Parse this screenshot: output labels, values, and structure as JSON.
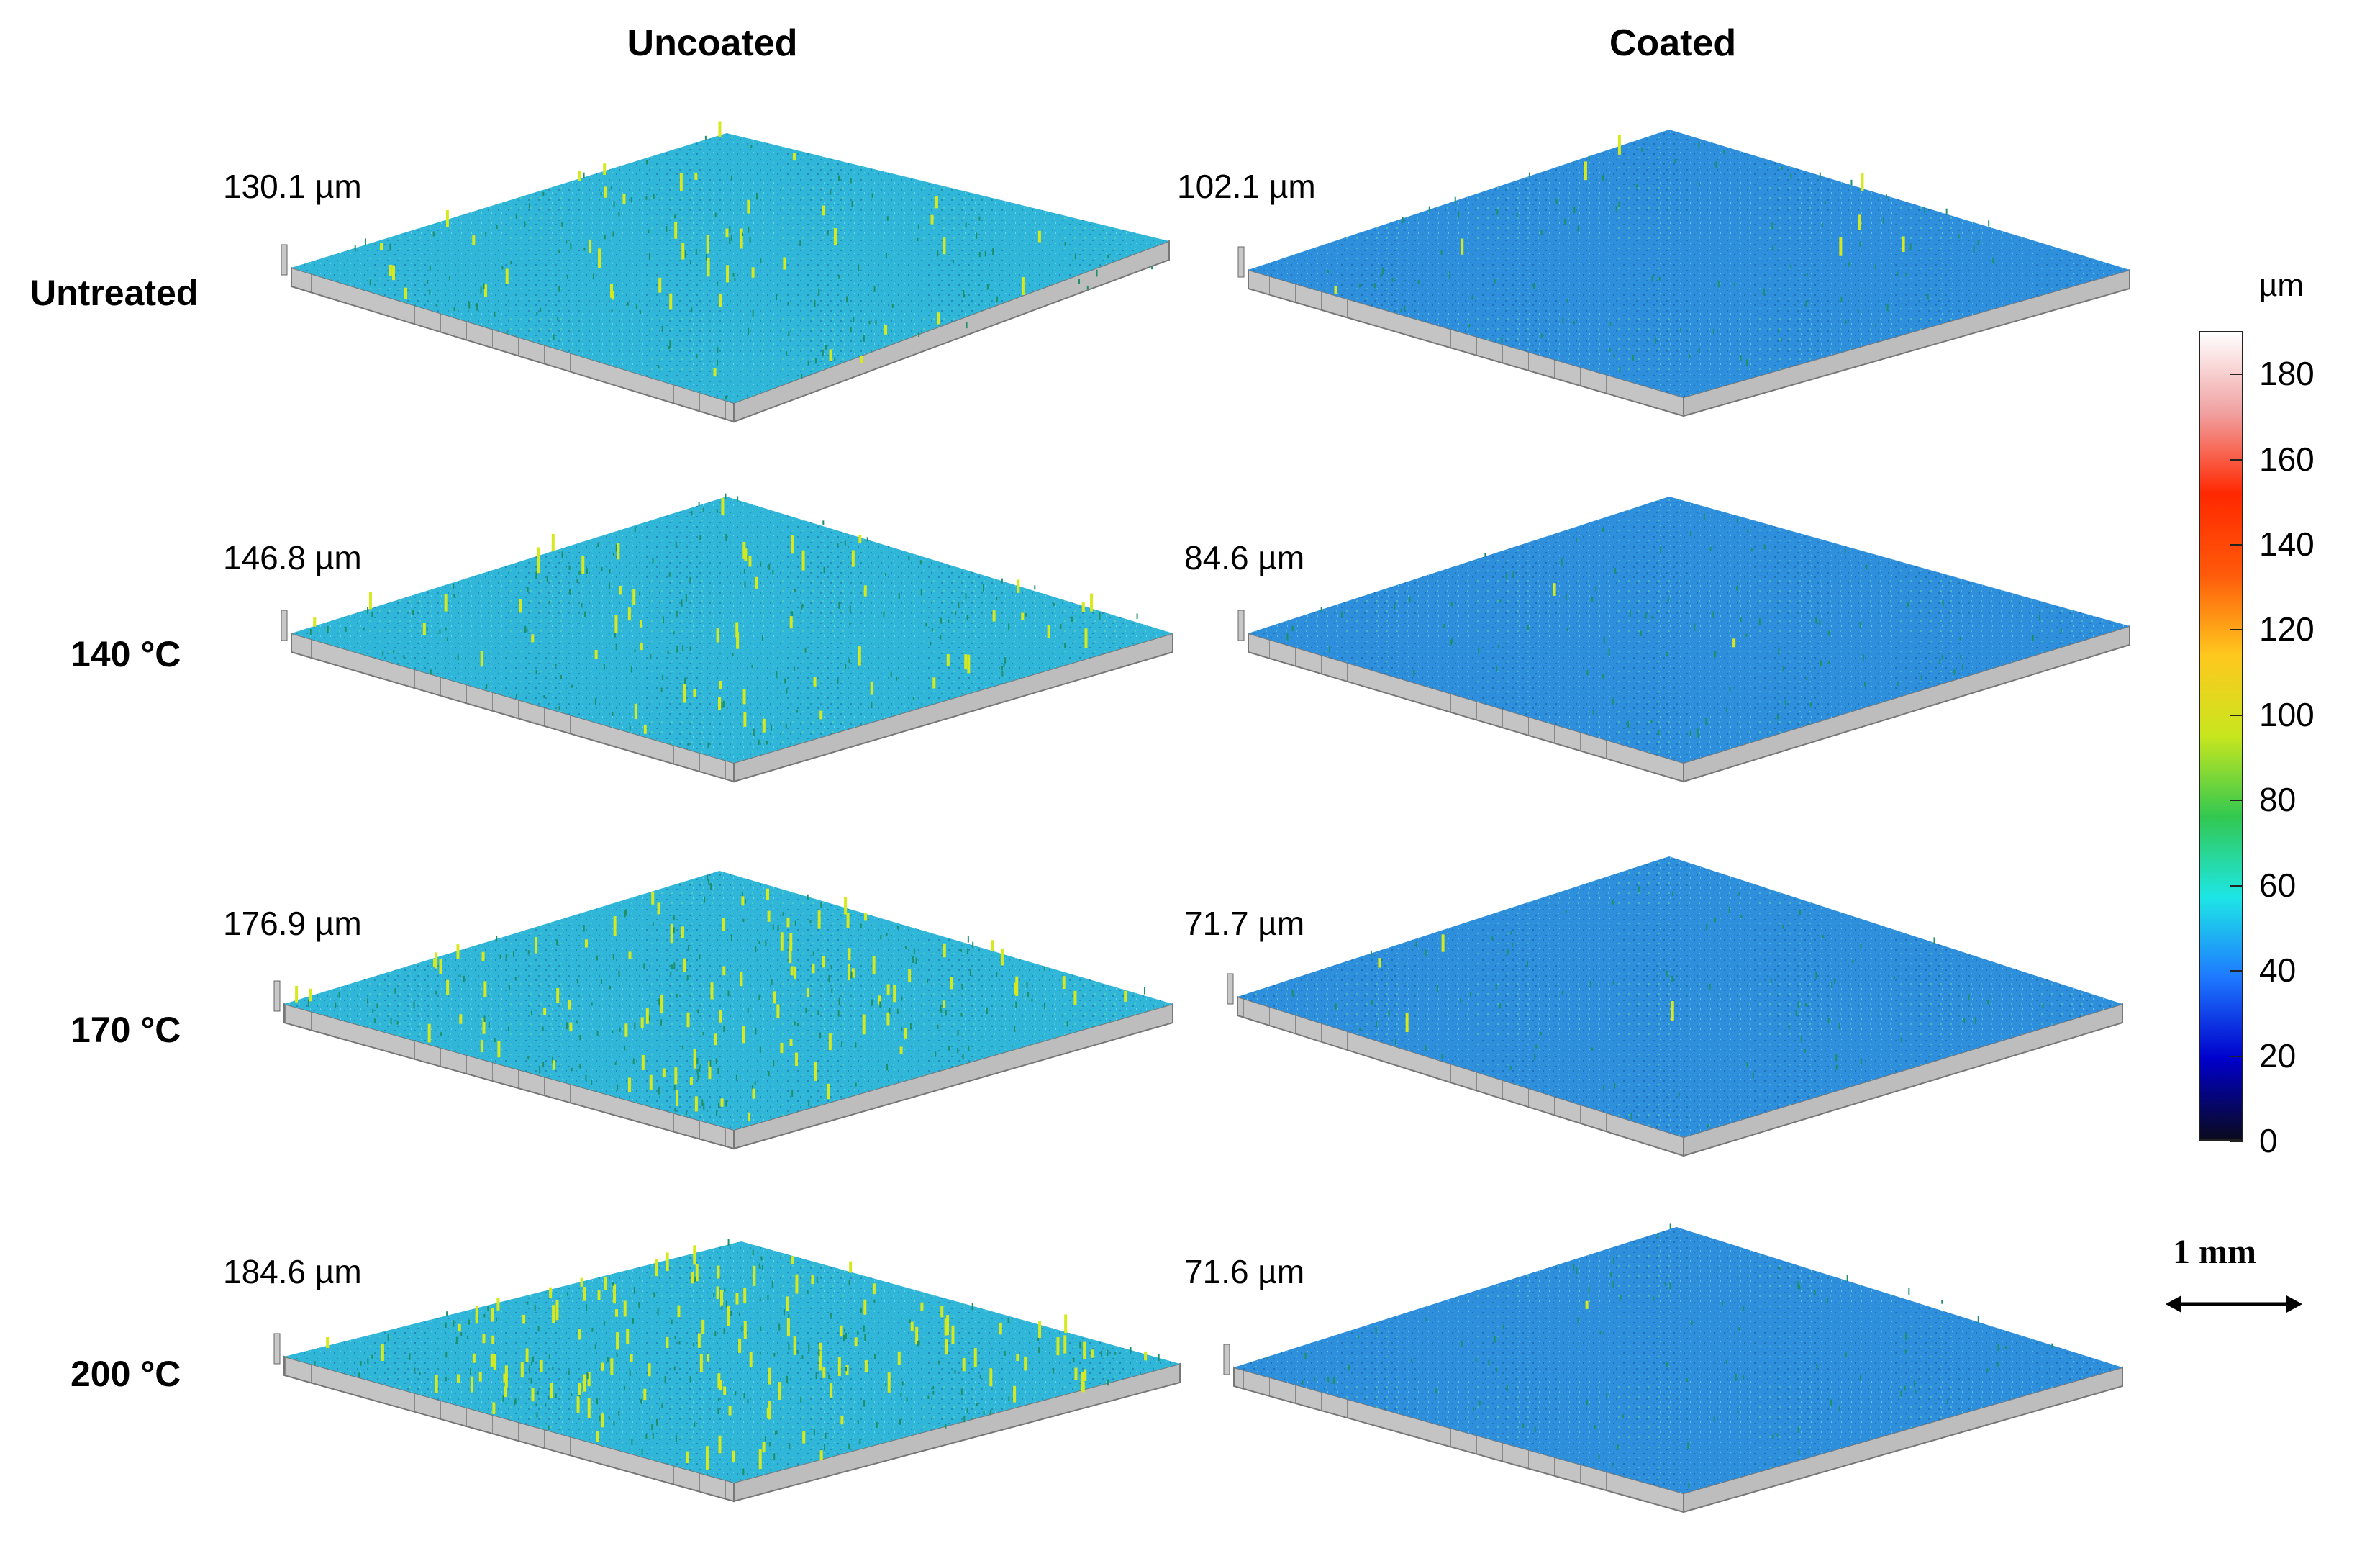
{
  "columns": [
    "Uncoated",
    "Coated"
  ],
  "rows": [
    "Untreated",
    "140 °C",
    "170 °C",
    "200 °C"
  ],
  "max_heights": {
    "uncoated": [
      "130.1 µm",
      "146.8 µm",
      "176.9 µm",
      "184.6 µm"
    ],
    "coated": [
      "102.1 µm",
      "84.6 µm",
      "71.7 µm",
      "71.6 µm"
    ]
  },
  "colorbar": {
    "unit": "µm",
    "ticks": [
      "180",
      "160",
      "140",
      "120",
      "100",
      "80",
      "60",
      "40",
      "20",
      "0"
    ],
    "range": [
      0,
      190
    ],
    "colors": [
      "#0a0a1e",
      "#0000cc",
      "#1e78ff",
      "#1ee6e6",
      "#32c850",
      "#c8e61e",
      "#ffc81e",
      "#ff5a0a",
      "#ff2800",
      "#f0a0a0",
      "#ffffff"
    ]
  },
  "scale_bar": {
    "label": "1 mm"
  },
  "surface_colors": {
    "uncoated_base": "#2fb6d8",
    "coated_base": "#2e8fdc",
    "peak": "#d6e81e",
    "base_edge": "#bdbdbd"
  }
}
